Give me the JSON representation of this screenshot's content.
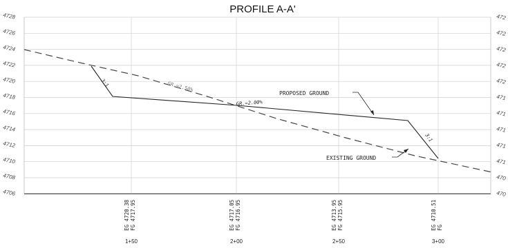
{
  "title": "PROFILE A-A'",
  "elevations_left": [
    "4728",
    "4726",
    "4724",
    "4722",
    "4720",
    "4718",
    "4716",
    "4714",
    "4712",
    "4710",
    "4708",
    "4706"
  ],
  "elevations_right": [
    "472",
    "472",
    "472",
    "472",
    "472",
    "471",
    "471",
    "471",
    "471",
    "471",
    "470",
    "470"
  ],
  "stations": [
    "1+50",
    "2+00",
    "2+50",
    "3+00"
  ],
  "station_labels": [
    [
      "EG 4720.38",
      "FG 4717.95"
    ],
    [
      "EG 4717.05",
      "FG 4716.95"
    ],
    [
      "EG 4713.95",
      "FG 4715.95"
    ],
    [
      "EG 4710.51",
      "FG"
    ]
  ],
  "annotations": {
    "proposed": "PROPOSED GROUND",
    "existing": "EXISTING GROUND",
    "slope_left": "3:1",
    "slope_right": "3:1",
    "grade_existing": "GR.=2.50%",
    "grade_proposed": "GR.=2.00%"
  }
}
